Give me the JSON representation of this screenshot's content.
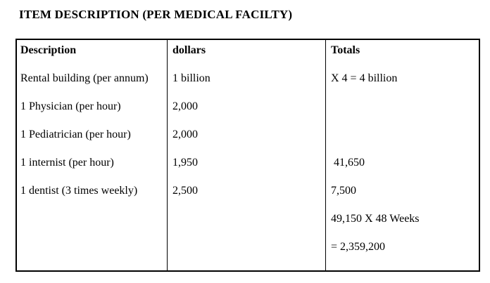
{
  "title": "ITEM DESCRIPTION (PER MEDICAL FACILTY)",
  "table": {
    "columns": [
      "Description",
      "dollars",
      "Totals"
    ],
    "rows": [
      {
        "description": "Rental building (per annum)",
        "dollars": "1 billion",
        "totals": "X 4 = 4 billion"
      },
      {
        "description": "1 Physician (per hour)",
        "dollars": "2,000",
        "totals": ""
      },
      {
        "description": "1 Pediatrician (per hour)",
        "dollars": "2,000",
        "totals": ""
      },
      {
        "description": "1 internist (per hour)",
        "dollars": "1,950",
        "totals": " 41,650"
      },
      {
        "description": "1 dentist (3 times weekly)",
        "dollars": "2,500",
        "totals": "7,500"
      },
      {
        "description": "",
        "dollars": "",
        "totals": "49,150 X 48 Weeks"
      },
      {
        "description": "",
        "dollars": "",
        "totals": "= 2,359,200"
      }
    ]
  },
  "colors": {
    "text": "#000000",
    "border": "#000000",
    "background": "#ffffff"
  }
}
